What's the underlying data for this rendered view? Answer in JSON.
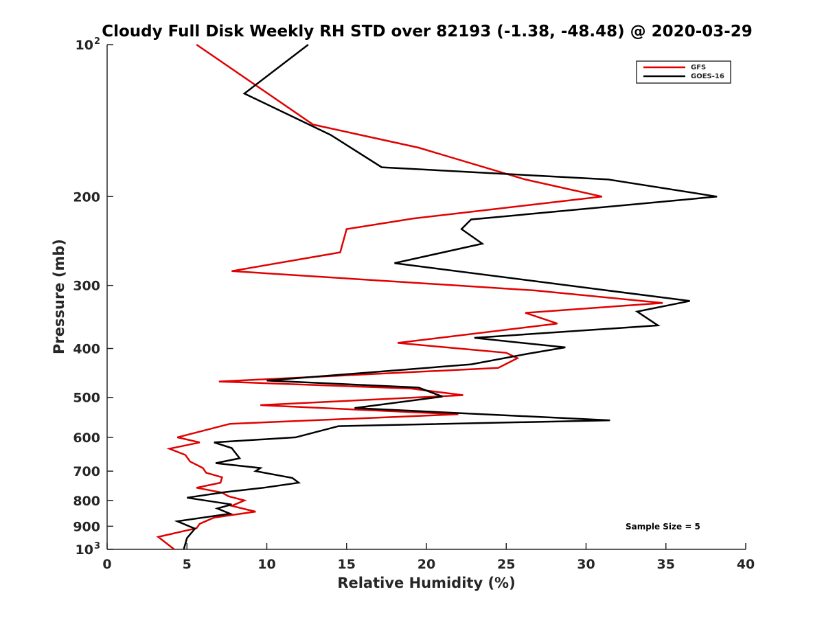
{
  "chart_data": {
    "type": "line",
    "title": "Cloudy Full Disk Weekly RH STD over 82193 (-1.38, -48.48) @ 2020-03-29",
    "xlabel": "Relative Humidity (%)",
    "ylabel": "Pressure (mb)",
    "xlim": [
      0,
      40
    ],
    "ylim": [
      100,
      1000
    ],
    "yscale": "log",
    "y_reversed": true,
    "grid": false,
    "legend_position": "top-right",
    "x_ticks": [
      "0",
      "5",
      "10",
      "15",
      "20",
      "25",
      "30",
      "35",
      "40"
    ],
    "y_ticks": [
      {
        "value": 100,
        "base": "10",
        "exp": "2"
      },
      {
        "value": 200,
        "label": "200"
      },
      {
        "value": 300,
        "label": "300"
      },
      {
        "value": 400,
        "label": "400"
      },
      {
        "value": 500,
        "label": "500"
      },
      {
        "value": 600,
        "label": "600"
      },
      {
        "value": 700,
        "label": "700"
      },
      {
        "value": 800,
        "label": "800"
      },
      {
        "value": 900,
        "label": "900"
      },
      {
        "value": 1000,
        "base": "10",
        "exp": "3"
      }
    ],
    "annotation": "Sample Size = 5",
    "series": [
      {
        "name": "GFS",
        "color": "#e00000",
        "x": [
          5.6,
          12.9,
          19.5,
          26.2,
          31.0,
          19.2,
          15.0,
          14.6,
          7.8,
          26.8,
          34.8,
          26.2,
          28.2,
          18.2,
          25.0,
          25.7,
          24.5,
          7.0,
          19.0,
          22.3,
          9.6,
          22.0,
          7.7,
          4.4,
          5.8,
          3.9,
          4.9,
          5.2,
          6.0,
          6.2,
          7.2,
          7.1,
          5.6,
          7.2,
          7.6,
          8.6,
          7.8,
          9.3,
          6.7,
          5.8,
          5.6,
          3.2,
          4.2
        ],
        "y": [
          100,
          144,
          160,
          185,
          200,
          221,
          232,
          258,
          281,
          307,
          325,
          340,
          357,
          390,
          408,
          418,
          437,
          465,
          480,
          495,
          518,
          540,
          564,
          600,
          614,
          632,
          650,
          670,
          690,
          705,
          720,
          738,
          755,
          772,
          785,
          800,
          820,
          842,
          865,
          890,
          908,
          945,
          1000
        ]
      },
      {
        "name": "GOES-16",
        "color": "#000000",
        "x": [
          12.6,
          8.6,
          14.0,
          17.2,
          31.4,
          38.2,
          22.8,
          22.2,
          23.5,
          18.0,
          31.0,
          36.5,
          33.2,
          34.5,
          23.0,
          28.7,
          26.3,
          22.8,
          10.0,
          19.5,
          21.0,
          15.5,
          31.5,
          14.5,
          11.8,
          6.7,
          7.8,
          8.3,
          6.8,
          9.6,
          9.3,
          11.6,
          12.0,
          9.8,
          7.4,
          5.0,
          7.8,
          6.9,
          7.7,
          4.4,
          5.5,
          5.0,
          4.8
        ],
        "y": [
          100,
          125,
          151,
          175,
          185,
          200,
          222,
          232,
          248,
          271,
          306,
          322,
          338,
          360,
          381,
          398,
          410,
          430,
          463,
          478,
          498,
          525,
          555,
          570,
          600,
          614,
          630,
          660,
          675,
          690,
          700,
          722,
          738,
          755,
          770,
          790,
          815,
          830,
          850,
          880,
          910,
          950,
          1000
        ]
      }
    ]
  }
}
